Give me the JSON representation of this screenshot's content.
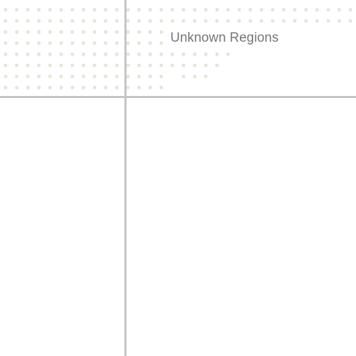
{
  "map": {
    "region_label": "Unknown Regions",
    "colors": {
      "background": "#ffffff",
      "dot": "#e7e5da",
      "grid_line": "#c4c4c4",
      "label": "#757575"
    }
  }
}
